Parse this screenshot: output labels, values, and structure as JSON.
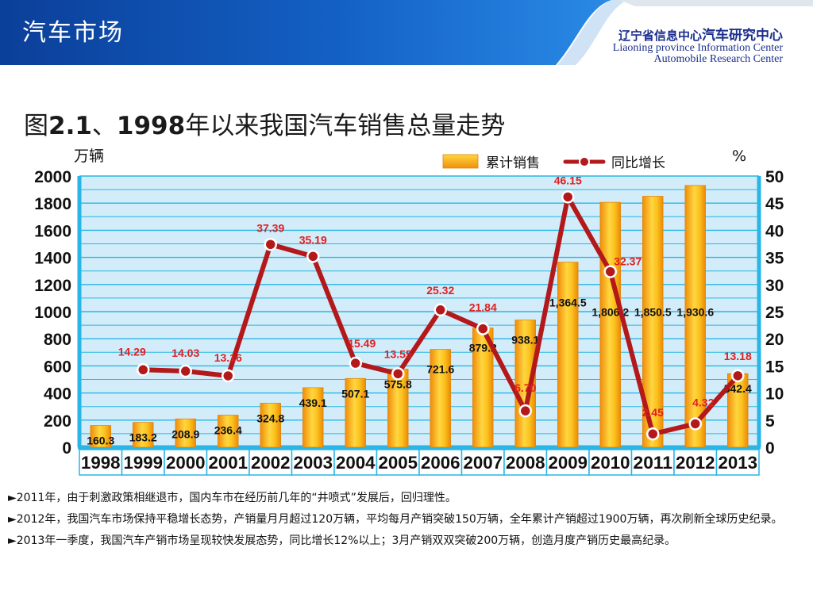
{
  "header": {
    "section_title": "汽车市场",
    "org_cn_prefix": "辽宁省信息中心",
    "org_cn_emphasis": "汽车研究中心",
    "org_en_line1": "Liaoning province Information Center",
    "org_en_line2": "Automobile Research Center"
  },
  "title": {
    "prefix": "图",
    "number": "2.1",
    "sep": "、",
    "year": "1998",
    "rest": "年以来我国汽车销售总量走势"
  },
  "colors": {
    "header_blue": "#0d4ba8",
    "bar_gold": "#f5b618",
    "line_red": "#b3191b",
    "axis_blue": "#29b6e6",
    "label_red": "#e02020"
  },
  "chart_data": {
    "type": "bar",
    "categories": [
      "1998",
      "1999",
      "2000",
      "2001",
      "2002",
      "2003",
      "2004",
      "2005",
      "2006",
      "2007",
      "2008",
      "2009",
      "2010",
      "2011",
      "2012",
      "2013"
    ],
    "y_left_label": "万辆",
    "y_right_label": "%",
    "ylim_left": [
      0,
      2000
    ],
    "yticks_left": [
      "0",
      "200",
      "400",
      "600",
      "800",
      "1000",
      "1200",
      "1400",
      "1600",
      "1800",
      "2000"
    ],
    "ylim_right": [
      0,
      50
    ],
    "yticks_right": [
      "0",
      "5",
      "10",
      "15",
      "20",
      "25",
      "30",
      "35",
      "40",
      "45",
      "50"
    ],
    "grid": true,
    "legend_position": "top-right",
    "series": [
      {
        "name": "累计销售",
        "kind": "bar",
        "values": [
          160.3,
          183.2,
          208.9,
          236.4,
          324.8,
          439.1,
          507.1,
          575.8,
          721.6,
          879.2,
          938.1,
          1364.5,
          1806.2,
          1850.5,
          1930.6,
          542.4
        ],
        "labels": [
          "160.3",
          "183.2",
          "208.9",
          "236.4",
          "324.8",
          "439.1",
          "507.1",
          "575.8",
          "721.6",
          "879.2",
          "938.1",
          "1,364.5",
          "1,806.2",
          "1,850.5",
          "1,930.6",
          "542.4"
        ]
      },
      {
        "name": "同比增长",
        "kind": "line",
        "x": [
          "1999",
          "2000",
          "2001",
          "2002",
          "2003",
          "2004",
          "2005",
          "2006",
          "2007",
          "2008",
          "2009",
          "2010",
          "2011",
          "2012",
          "2013"
        ],
        "values": [
          14.29,
          14.03,
          13.16,
          37.39,
          35.19,
          15.49,
          13.55,
          25.32,
          21.84,
          6.7,
          46.15,
          32.37,
          2.45,
          4.32,
          13.18
        ],
        "labels": [
          "14.29",
          "14.03",
          "13.16",
          "37.39",
          "35.19",
          "15.49",
          "13.55",
          "25.32",
          "21.84",
          "6.70",
          "46.15",
          "32.37",
          "2.45",
          "4.32",
          "13.18"
        ]
      }
    ]
  },
  "bullets": [
    "►2011年，由于刺激政策相继退市，国内车市在经历前几年的“井喷式”发展后，回归理性。",
    "►2012年，我国汽车市场保持平稳增长态势，产销量月月超过120万辆，平均每月产销突破150万辆，全年累计产销超过1900万辆，再次刷新全球历史纪录。",
    "►2013年一季度，我国汽车产销市场呈现较快发展态势，同比增长12%以上；3月产销双双突破200万辆，创造月度产销历史最高纪录。"
  ]
}
